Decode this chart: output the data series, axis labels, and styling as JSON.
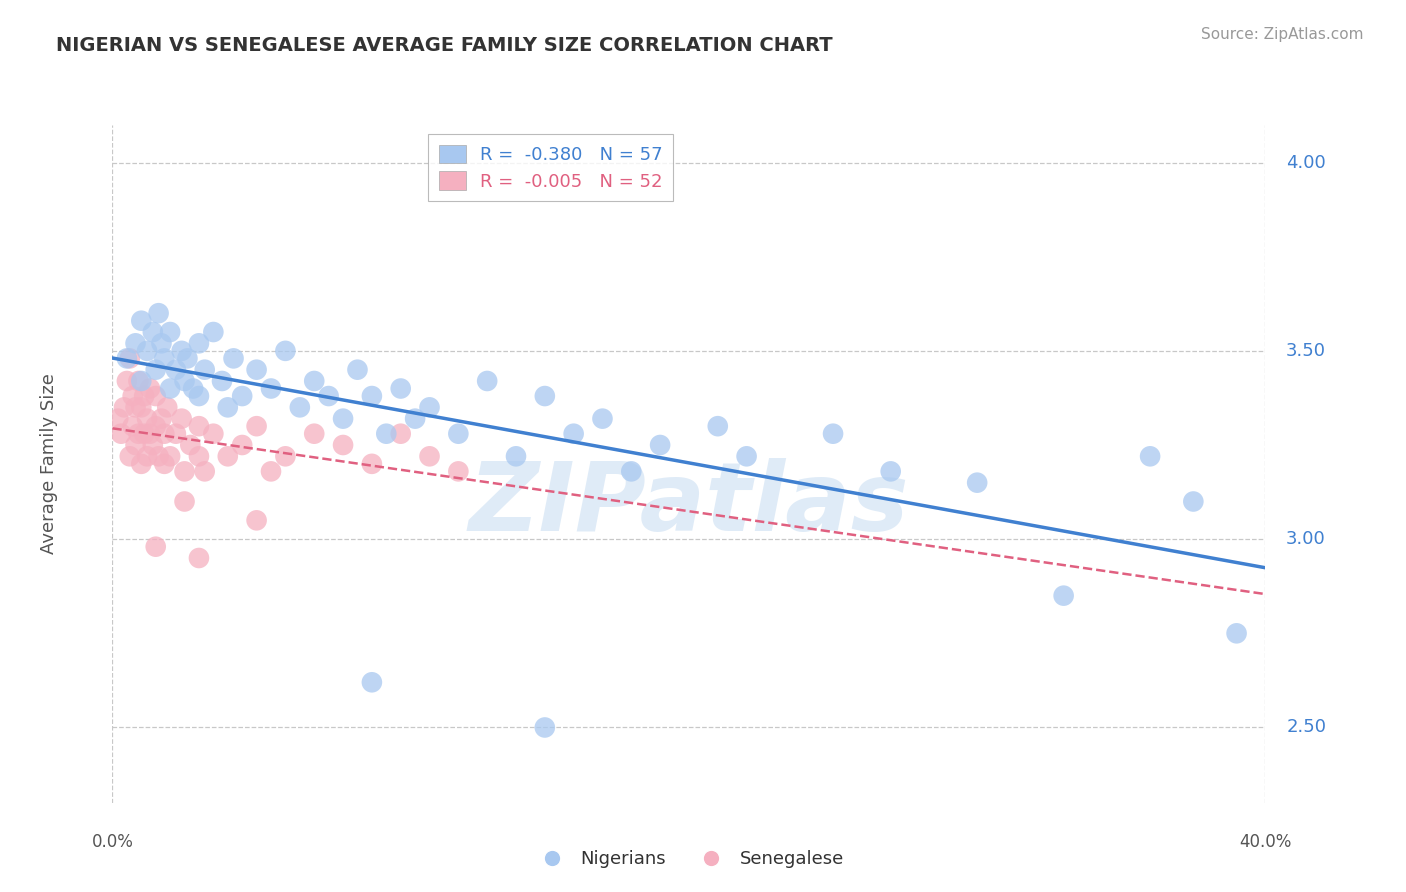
{
  "title": "NIGERIAN VS SENEGALESE AVERAGE FAMILY SIZE CORRELATION CHART",
  "source": "Source: ZipAtlas.com",
  "ylabel": "Average Family Size",
  "yticks": [
    2.5,
    3.0,
    3.5,
    4.0
  ],
  "xlim": [
    0.0,
    0.4
  ],
  "ylim": [
    2.3,
    4.1
  ],
  "nigerian_R": "-0.380",
  "nigerian_N": "57",
  "senegalese_R": "-0.005",
  "senegalese_N": "52",
  "nigerian_color": "#a8c8f0",
  "senegalese_color": "#f5b0c0",
  "nigerian_line_color": "#4080d0",
  "senegalese_line_color": "#e06080",
  "background_color": "#ffffff",
  "grid_color": "#c8c8c8",
  "watermark": "ZIPatlas",
  "nigerian_x": [
    0.005,
    0.008,
    0.01,
    0.01,
    0.012,
    0.014,
    0.015,
    0.016,
    0.017,
    0.018,
    0.02,
    0.02,
    0.022,
    0.024,
    0.025,
    0.026,
    0.028,
    0.03,
    0.03,
    0.032,
    0.035,
    0.038,
    0.04,
    0.042,
    0.045,
    0.05,
    0.055,
    0.06,
    0.065,
    0.07,
    0.075,
    0.08,
    0.085,
    0.09,
    0.095,
    0.1,
    0.105,
    0.11,
    0.12,
    0.13,
    0.14,
    0.15,
    0.16,
    0.17,
    0.18,
    0.19,
    0.21,
    0.22,
    0.25,
    0.27,
    0.3,
    0.33,
    0.36,
    0.375,
    0.39,
    0.15,
    0.09
  ],
  "nigerian_y": [
    3.48,
    3.52,
    3.42,
    3.58,
    3.5,
    3.55,
    3.45,
    3.6,
    3.52,
    3.48,
    3.4,
    3.55,
    3.45,
    3.5,
    3.42,
    3.48,
    3.4,
    3.52,
    3.38,
    3.45,
    3.55,
    3.42,
    3.35,
    3.48,
    3.38,
    3.45,
    3.4,
    3.5,
    3.35,
    3.42,
    3.38,
    3.32,
    3.45,
    3.38,
    3.28,
    3.4,
    3.32,
    3.35,
    3.28,
    3.42,
    3.22,
    3.38,
    3.28,
    3.32,
    3.18,
    3.25,
    3.3,
    3.22,
    3.28,
    3.18,
    3.15,
    2.85,
    3.22,
    3.1,
    2.75,
    2.5,
    2.62
  ],
  "senegalese_x": [
    0.002,
    0.003,
    0.004,
    0.005,
    0.006,
    0.006,
    0.007,
    0.007,
    0.008,
    0.008,
    0.009,
    0.009,
    0.01,
    0.01,
    0.011,
    0.011,
    0.012,
    0.012,
    0.013,
    0.013,
    0.014,
    0.015,
    0.015,
    0.016,
    0.017,
    0.018,
    0.018,
    0.019,
    0.02,
    0.022,
    0.024,
    0.025,
    0.027,
    0.03,
    0.03,
    0.032,
    0.035,
    0.04,
    0.045,
    0.05,
    0.055,
    0.06,
    0.07,
    0.08,
    0.09,
    0.1,
    0.11,
    0.12,
    0.05,
    0.03,
    0.015,
    0.025
  ],
  "senegalese_y": [
    3.32,
    3.28,
    3.35,
    3.42,
    3.22,
    3.48,
    3.3,
    3.38,
    3.25,
    3.35,
    3.28,
    3.42,
    3.2,
    3.35,
    3.28,
    3.38,
    3.22,
    3.32,
    3.28,
    3.4,
    3.25,
    3.3,
    3.38,
    3.22,
    3.32,
    3.28,
    3.2,
    3.35,
    3.22,
    3.28,
    3.32,
    3.18,
    3.25,
    3.3,
    3.22,
    3.18,
    3.28,
    3.22,
    3.25,
    3.3,
    3.18,
    3.22,
    3.28,
    3.25,
    3.2,
    3.28,
    3.22,
    3.18,
    3.05,
    2.95,
    2.98,
    3.1
  ]
}
